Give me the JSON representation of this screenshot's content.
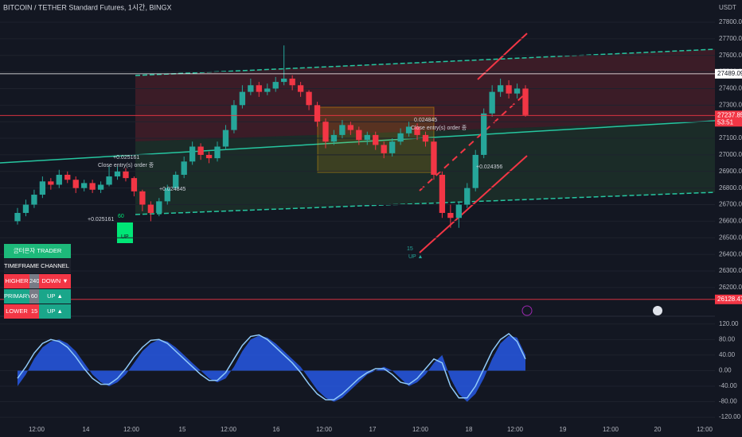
{
  "header": {
    "title": "BITCOIN / TETHER Standard Futures, 1시간, BINGX",
    "currency": "USDT"
  },
  "table": {
    "title": "금터은자 TRADER",
    "header": [
      "TIMEFRAME",
      "CHANNEL"
    ],
    "rows": [
      [
        "HIGHER",
        240,
        "DOWN ▼"
      ],
      [
        "PRIMARY",
        60,
        "UP ▲"
      ],
      [
        "LOWER",
        15,
        "UP ▲"
      ]
    ]
  },
  "chart_data": [
    {
      "type": "candlestick",
      "up_color": "#26a69a",
      "down_color": "#f23645",
      "ylim": [
        26027,
        27934
      ],
      "yticks": [
        {
          "value": 27800,
          "label": "27800.00"
        },
        {
          "value": 27700,
          "label": "27700.00"
        },
        {
          "value": 27600,
          "label": "27600.00"
        },
        {
          "value": 27500,
          "label": "27500.00"
        },
        {
          "value": 27400,
          "label": "27400.00"
        },
        {
          "value": 27300,
          "label": "27300.00"
        },
        {
          "value": 27200,
          "label": "27200.00"
        },
        {
          "value": 27100,
          "label": "27100.00"
        },
        {
          "value": 27000,
          "label": "27000.00"
        },
        {
          "value": 26900,
          "label": "26900.00"
        },
        {
          "value": 26800,
          "label": "26800.00"
        },
        {
          "value": 26700,
          "label": "26700.00"
        },
        {
          "value": 26600,
          "label": "26600.00"
        },
        {
          "value": 26500,
          "label": "26500.00"
        },
        {
          "value": 26400,
          "label": "26400.00"
        },
        {
          "value": 26300,
          "label": "26300.00"
        },
        {
          "value": 26200,
          "label": "26200.00"
        }
      ],
      "price_lines": [
        {
          "value": 27489.09,
          "label": "27489.09",
          "color": "#ffffff"
        },
        {
          "value": 27237.85,
          "label": "27237.85",
          "sublabel": "53:51",
          "color": "#f23645"
        },
        {
          "value": 26128.47,
          "label": "26128.47",
          "color": "#f23645"
        }
      ],
      "xtick_labels": [
        "12:00",
        "14",
        "12:00",
        "15",
        "12:00",
        "16",
        "12:00",
        "17",
        "12:00",
        "18",
        "12:00",
        "19",
        "12:00",
        "20",
        "12:00"
      ],
      "annotations": [
        "+0.025161",
        "Close entry(s) order 종",
        "+0.024845",
        "+0.025161",
        "60",
        "UP",
        "15",
        "UP ▲",
        "0.024845",
        "Close entry(s) order 종",
        "+0.024356"
      ],
      "candles": [
        [
          26600,
          26680,
          26580,
          26650
        ],
        [
          26650,
          26730,
          26630,
          26700
        ],
        [
          26700,
          26790,
          26680,
          26760
        ],
        [
          26760,
          26870,
          26740,
          26840
        ],
        [
          26840,
          26860,
          26790,
          26820
        ],
        [
          26820,
          26910,
          26800,
          26880
        ],
        [
          26880,
          26900,
          26830,
          26850
        ],
        [
          26850,
          26870,
          26770,
          26800
        ],
        [
          26800,
          26850,
          26780,
          26830
        ],
        [
          26830,
          26850,
          26770,
          26790
        ],
        [
          26790,
          26840,
          26770,
          26820
        ],
        [
          26820,
          26930,
          26810,
          26870
        ],
        [
          26870,
          26930,
          26850,
          26900
        ],
        [
          26900,
          26920,
          26840,
          26860
        ],
        [
          26860,
          26870,
          26750,
          26780
        ],
        [
          26780,
          26790,
          26660,
          26700
        ],
        [
          26700,
          26720,
          26600,
          26650
        ],
        [
          26650,
          26740,
          26630,
          26720
        ],
        [
          26720,
          26820,
          26700,
          26800
        ],
        [
          26800,
          26900,
          26790,
          26880
        ],
        [
          26880,
          26990,
          26860,
          26960
        ],
        [
          26960,
          27080,
          26940,
          27050
        ],
        [
          27050,
          27070,
          26970,
          27000
        ],
        [
          27000,
          27020,
          26950,
          26980
        ],
        [
          26980,
          27080,
          26960,
          27050
        ],
        [
          27050,
          27180,
          27030,
          27150
        ],
        [
          27150,
          27330,
          27130,
          27300
        ],
        [
          27300,
          27420,
          27280,
          27380
        ],
        [
          27380,
          27460,
          27360,
          27420
        ],
        [
          27420,
          27440,
          27350,
          27380
        ],
        [
          27380,
          27430,
          27360,
          27400
        ],
        [
          27400,
          27470,
          27380,
          27440
        ],
        [
          27440,
          27660,
          27420,
          27460
        ],
        [
          27460,
          27480,
          27390,
          27420
        ],
        [
          27420,
          27440,
          27350,
          27380
        ],
        [
          27380,
          27390,
          27270,
          27300
        ],
        [
          27300,
          27320,
          27170,
          27200
        ],
        [
          27200,
          27220,
          27040,
          27080
        ],
        [
          27080,
          27150,
          27060,
          27120
        ],
        [
          27120,
          27210,
          27100,
          27180
        ],
        [
          27180,
          27200,
          27120,
          27150
        ],
        [
          27150,
          27170,
          27060,
          27090
        ],
        [
          27090,
          27140,
          27060,
          27120
        ],
        [
          27120,
          27140,
          27030,
          27060
        ],
        [
          27060,
          27080,
          26980,
          27010
        ],
        [
          27010,
          27100,
          26990,
          27080
        ],
        [
          27080,
          27160,
          27060,
          27130
        ],
        [
          27130,
          27200,
          27110,
          27170
        ],
        [
          27170,
          27190,
          27090,
          27120
        ],
        [
          27120,
          27140,
          27050,
          27080
        ],
        [
          27080,
          27100,
          26850,
          26880
        ],
        [
          26880,
          26900,
          26620,
          26650
        ],
        [
          26650,
          26700,
          26560,
          26620
        ],
        [
          26620,
          26720,
          26560,
          26700
        ],
        [
          26700,
          26830,
          26680,
          26800
        ],
        [
          26800,
          27030,
          26780,
          27000
        ],
        [
          27000,
          27280,
          26980,
          27250
        ],
        [
          27250,
          27420,
          27230,
          27380
        ],
        [
          27380,
          27460,
          27350,
          27420
        ],
        [
          27420,
          27450,
          27340,
          27370
        ],
        [
          27370,
          27430,
          27340,
          27400
        ],
        [
          27400,
          27420,
          27230,
          27240
        ]
      ]
    },
    {
      "type": "area",
      "ylim": [
        -130,
        140
      ],
      "yticks": [
        {
          "value": 120,
          "label": "120.00"
        },
        {
          "value": 80,
          "label": "80.00"
        },
        {
          "value": 40,
          "label": "40.00"
        },
        {
          "value": 0,
          "label": "0.00"
        },
        {
          "value": -40,
          "label": "-40.00"
        },
        {
          "value": -80,
          "label": "-80.00"
        },
        {
          "value": -120,
          "label": "-120.00"
        }
      ],
      "series": [
        {
          "color": "#2962ff",
          "values": [
            -40,
            -10,
            30,
            60,
            75,
            80,
            70,
            50,
            20,
            -10,
            -30,
            -40,
            -30,
            -10,
            20,
            50,
            70,
            80,
            75,
            60,
            40,
            20,
            0,
            -20,
            -30,
            -20,
            10,
            50,
            80,
            90,
            85,
            70,
            50,
            30,
            10,
            -20,
            -50,
            -70,
            -80,
            -70,
            -50,
            -30,
            -10,
            0,
            10,
            0,
            -20,
            -40,
            -30,
            -10,
            20,
            40,
            -20,
            -60,
            -80,
            -60,
            -20,
            30,
            70,
            90,
            85,
            40
          ]
        },
        {
          "color": "#90caf9",
          "values": [
            -20,
            10,
            45,
            70,
            80,
            75,
            60,
            35,
            5,
            -20,
            -35,
            -35,
            -20,
            5,
            35,
            60,
            78,
            80,
            70,
            50,
            30,
            10,
            -10,
            -25,
            -25,
            -5,
            30,
            65,
            88,
            92,
            80,
            60,
            40,
            20,
            -5,
            -35,
            -60,
            -75,
            -75,
            -60,
            -40,
            -20,
            -5,
            5,
            5,
            -10,
            -30,
            -35,
            -20,
            5,
            30,
            20,
            -40,
            -70,
            -70,
            -40,
            5,
            50,
            80,
            95,
            75,
            30
          ]
        }
      ]
    }
  ]
}
